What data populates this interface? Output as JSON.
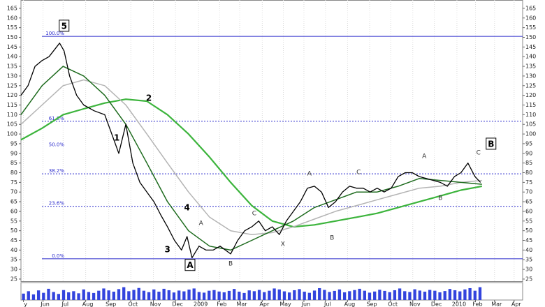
{
  "chart_data": {
    "type": "line",
    "xlim": [
      0,
      100
    ],
    "ylim": [
      23.9,
      169.3
    ],
    "yticks": [
      25,
      30,
      35,
      40,
      45,
      50,
      55,
      60,
      65,
      70,
      75,
      80,
      85,
      90,
      95,
      100,
      105,
      110,
      115,
      120,
      125,
      130,
      135,
      140,
      145,
      150,
      155,
      160,
      165
    ],
    "xticks": [
      {
        "value": 0.5,
        "label": "y"
      },
      {
        "value": 4.4,
        "label": "Jun"
      },
      {
        "value": 8.4,
        "label": "Jul"
      },
      {
        "value": 12.9,
        "label": "Aug"
      },
      {
        "value": 17.5,
        "label": "Sep"
      },
      {
        "value": 21.9,
        "label": "Oct"
      },
      {
        "value": 26.4,
        "label": "Nov"
      },
      {
        "value": 30.8,
        "label": "Dec"
      },
      {
        "value": 35.4,
        "label": "2009"
      },
      {
        "value": 39.6,
        "label": "Feb"
      },
      {
        "value": 43.6,
        "label": "Mar"
      },
      {
        "value": 48.1,
        "label": "Apr"
      },
      {
        "value": 52.3,
        "label": "May"
      },
      {
        "value": 56.4,
        "label": "Jun"
      },
      {
        "value": 60.7,
        "label": "Jul"
      },
      {
        "value": 65.1,
        "label": "Aug"
      },
      {
        "value": 69.5,
        "label": "Sep"
      },
      {
        "value": 73.7,
        "label": "Oct"
      },
      {
        "value": 78.1,
        "label": "Nov"
      },
      {
        "value": 82.4,
        "label": "Dec"
      },
      {
        "value": 86.9,
        "label": "2010"
      },
      {
        "value": 90.6,
        "label": "Feb"
      },
      {
        "value": 94.4,
        "label": "Mar"
      },
      {
        "value": 98.3,
        "label": "Apr"
      }
    ],
    "grid": true,
    "series": [
      {
        "color": "#000000",
        "width": 1.3,
        "x": [
          0,
          1.4,
          2.8,
          4.2,
          5.6,
          7.7,
          8.6,
          9.7,
          11.1,
          12.5,
          14.6,
          16.7,
          18.1,
          19.5,
          20.9,
          22.3,
          23.7,
          25.1,
          26.5,
          27.9,
          29.2,
          30.6,
          32,
          33.1,
          34.1,
          35.5,
          36.9,
          38.3,
          39.7,
          41.8,
          43.2,
          44.6,
          46,
          47.4,
          48.7,
          50.1,
          51.5,
          52.9,
          54.3,
          55.7,
          57.1,
          58.5,
          59.9,
          61.3,
          62.7,
          64.1,
          65.5,
          66.9,
          68.2,
          69.6,
          71,
          72.4,
          73.8,
          75.2,
          76.6,
          78,
          79.4,
          80.8,
          82.2,
          83.6,
          85,
          86.4,
          87.7,
          89.1,
          90.5,
          91.6
        ],
        "values": [
          120,
          125,
          135,
          138,
          140,
          147,
          143,
          130,
          120,
          115,
          112,
          110,
          100,
          90,
          105,
          85,
          75,
          70,
          65,
          58,
          52,
          45,
          40,
          47,
          36,
          42,
          40,
          40,
          42,
          38,
          45,
          50,
          52,
          55,
          50,
          52,
          48,
          55,
          60,
          65,
          72,
          73,
          70,
          62,
          65,
          70,
          73,
          72,
          72,
          70,
          72,
          70,
          72,
          78,
          80,
          80,
          78,
          77,
          76,
          75,
          73,
          78,
          80,
          85,
          78,
          75
        ]
      },
      {
        "color": "#1e6b1e",
        "width": 1.5,
        "x": [
          0,
          4.2,
          8.4,
          12.5,
          16.7,
          20.9,
          25.1,
          29.2,
          33.4,
          37.6,
          41.8,
          46,
          50.1,
          54.3,
          58.5,
          62.7,
          66.9,
          71,
          75.2,
          79.4,
          83.6,
          87.7,
          91.9
        ],
        "values": [
          110,
          125,
          135,
          130,
          120,
          105,
          85,
          65,
          50,
          42,
          40,
          45,
          50,
          55,
          62,
          66,
          70,
          70,
          73,
          77,
          76,
          75,
          74
        ]
      },
      {
        "color": "#b4b4b4",
        "width": 1.5,
        "x": [
          0,
          4.2,
          8.4,
          12.5,
          16.7,
          20.9,
          25.1,
          29.2,
          33.4,
          37.6,
          41.8,
          46,
          50.1,
          54.3,
          58.5,
          62.7,
          66.9,
          71,
          75.2,
          79.4,
          83.6,
          87.7,
          91.9
        ],
        "values": [
          105,
          115,
          125,
          128,
          125,
          115,
          100,
          85,
          70,
          57,
          50,
          48,
          49,
          52,
          56,
          60,
          63,
          66,
          69,
          72,
          73,
          75,
          76
        ]
      },
      {
        "color": "#3cb43c",
        "width": 2.2,
        "x": [
          0,
          4.2,
          8.4,
          12.5,
          16.7,
          20.9,
          25.1,
          29.2,
          33.4,
          37.6,
          41.8,
          46,
          50.1,
          54.3,
          58.5,
          62.7,
          66.9,
          71,
          75.2,
          79.4,
          83.6,
          87.7,
          91.9
        ],
        "values": [
          97,
          103,
          110,
          113,
          116,
          118,
          117,
          110,
          100,
          88,
          75,
          63,
          55,
          52,
          53,
          55,
          57,
          59,
          62,
          65,
          68,
          71,
          73
        ]
      }
    ],
    "fib_levels": [
      {
        "value": 150.5,
        "label": "100.0%",
        "style": "solid"
      },
      {
        "value": 106.6,
        "label": "61.8%",
        "style": "dotted"
      },
      {
        "value": 93,
        "label": "50.0%",
        "style": "none"
      },
      {
        "value": 79.4,
        "label": "38.2%",
        "style": "dotted"
      },
      {
        "value": 62.6,
        "label": "23.6%",
        "style": "dotted"
      },
      {
        "value": 35.5,
        "label": "0.0%",
        "style": "solid"
      }
    ],
    "fib_color": "#2a2acc",
    "annotations": [
      {
        "text": "5",
        "x": 8.6,
        "y": 156,
        "boxed": true
      },
      {
        "text": "1",
        "x": 19.1,
        "y": 98.3,
        "boxed": false
      },
      {
        "text": "2",
        "x": 25.5,
        "y": 118.8,
        "boxed": false
      },
      {
        "text": "3",
        "x": 29.2,
        "y": 40.5,
        "boxed": false
      },
      {
        "text": "4",
        "x": 33.1,
        "y": 62.2,
        "boxed": false
      },
      {
        "text": "A",
        "x": 33.7,
        "y": 32.3,
        "boxed": true
      },
      {
        "text": "A",
        "x": 35.9,
        "y": 54.2,
        "boxed": false,
        "small": true
      },
      {
        "text": "B",
        "x": 41.8,
        "y": 33.3,
        "boxed": false,
        "small": true
      },
      {
        "text": "C",
        "x": 46.5,
        "y": 59.3,
        "boxed": false,
        "small": true
      },
      {
        "text": "X",
        "x": 52.2,
        "y": 43.4,
        "boxed": false,
        "small": true
      },
      {
        "text": "A",
        "x": 57.5,
        "y": 79.9,
        "boxed": false,
        "small": true
      },
      {
        "text": "B",
        "x": 62,
        "y": 46.7,
        "boxed": false,
        "small": true
      },
      {
        "text": "C",
        "x": 67.3,
        "y": 80.6,
        "boxed": false,
        "small": true
      },
      {
        "text": "A",
        "x": 80.4,
        "y": 88.9,
        "boxed": false,
        "small": true
      },
      {
        "text": "B",
        "x": 83.6,
        "y": 67.2,
        "boxed": false,
        "small": true
      },
      {
        "text": "C",
        "x": 91.2,
        "y": 90.7,
        "boxed": false,
        "small": true
      },
      {
        "text": "B",
        "x": 93.7,
        "y": 95,
        "boxed": true
      }
    ],
    "volume": {
      "color": "#3344dd",
      "ylim": [
        0,
        100
      ],
      "values": [
        40,
        55,
        35,
        60,
        45,
        70,
        50,
        38,
        62,
        48,
        55,
        42,
        66,
        50,
        44,
        58,
        72,
        60,
        52,
        68,
        80,
        55,
        63,
        75,
        58,
        49,
        66,
        52,
        70,
        61,
        47,
        59,
        54,
        65,
        72,
        50,
        46,
        58,
        62,
        53,
        48,
        57,
        69,
        52,
        44,
        60,
        55,
        63,
        49,
        58,
        72,
        66,
        54,
        47,
        61,
        68,
        52,
        45,
        59,
        74,
        63,
        50,
        57,
        66,
        48,
        55,
        62,
        70,
        58,
        46,
        53,
        64,
        57,
        49,
        61,
        72,
        55,
        50,
        67,
        59,
        52,
        63,
        58,
        48,
        56,
        69,
        61,
        54,
        66,
        74,
        58,
        80
      ]
    }
  }
}
